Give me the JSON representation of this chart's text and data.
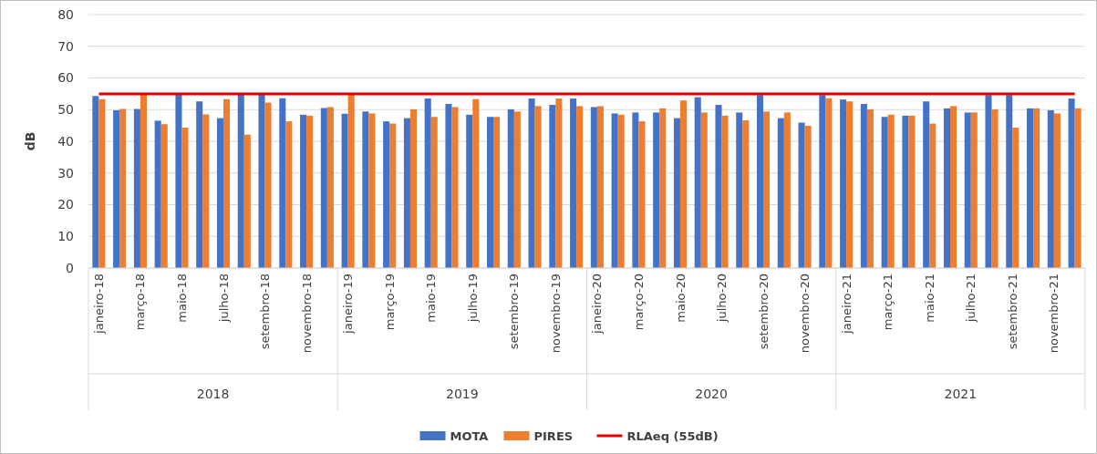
{
  "chart_data": {
    "type": "bar",
    "ylabel": "dB",
    "categories": [
      "janeiro-18",
      null,
      "março-18",
      null,
      "maio-18",
      null,
      "julho-18",
      null,
      "setembro-18",
      null,
      "novembro-18",
      null,
      "janeiro-19",
      null,
      "março-19",
      null,
      "maio-19",
      null,
      "julho-19",
      null,
      "setembro-19",
      null,
      "novembro-19",
      null,
      "janeiro-20",
      null,
      "março-20",
      null,
      "maio-20",
      null,
      "julho-20",
      null,
      "setembro-20",
      null,
      "novembro-20",
      null,
      "janeiro-21",
      null,
      "março-21",
      null,
      "maio-21",
      null,
      "julho-21",
      null,
      "setembro-21",
      null,
      "novembro-21",
      null
    ],
    "series": [
      {
        "name": "MOTA",
        "color": "#4472c4",
        "values": [
          54.3,
          49.8,
          50.2,
          46.5,
          55.1,
          52.6,
          47.3,
          55.1,
          55.1,
          53.6,
          48.4,
          50.5,
          48.7,
          49.4,
          46.3,
          47.3,
          53.5,
          51.8,
          48.4,
          47.7,
          50.1,
          53.5,
          51.5,
          53.5,
          50.8,
          48.8,
          49.1,
          49.1,
          47.3,
          53.9,
          51.5,
          49.1,
          54.6,
          47.3,
          45.9,
          54.6,
          53.2,
          51.8,
          47.7,
          48.1,
          52.6,
          50.4,
          49.1,
          54.6,
          54.6,
          50.4,
          49.8,
          53.5
        ]
      },
      {
        "name": "PIRES",
        "color": "#ed7d31",
        "values": [
          53.3,
          50.2,
          55.1,
          45.4,
          44.3,
          48.5,
          53.3,
          42.1,
          52.2,
          46.3,
          48.1,
          50.8,
          55.1,
          48.8,
          45.6,
          50.1,
          47.7,
          50.8,
          53.3,
          47.7,
          49.4,
          51.1,
          53.5,
          51.1,
          51.1,
          48.4,
          46.3,
          50.4,
          52.9,
          49.1,
          48.1,
          46.6,
          49.4,
          49.1,
          44.9,
          53.6,
          52.6,
          50.1,
          48.4,
          48.1,
          45.6,
          51.1,
          49.1,
          50.1,
          44.3,
          50.4,
          48.8,
          50.4
        ]
      }
    ],
    "ref_lines": [
      {
        "axis": "y",
        "value": 55,
        "label": "RLAeq (55dB)",
        "color": "#e00000"
      }
    ],
    "annotations": [
      "2018",
      "2019",
      "2020",
      "2021"
    ],
    "ylim": [
      0,
      80
    ],
    "yticks": [
      0,
      10,
      20,
      30,
      40,
      50,
      60,
      70,
      80
    ],
    "grid": "y",
    "legend": "bottom"
  }
}
